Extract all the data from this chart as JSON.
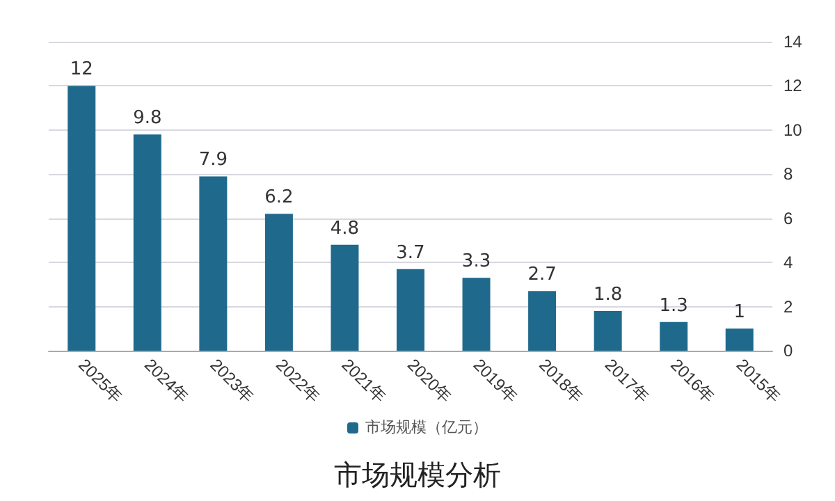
{
  "chart_data": {
    "type": "bar",
    "title": "市场规模分析",
    "categories": [
      "2025年",
      "2024年",
      "2023年",
      "2022年",
      "2021年",
      "2020年",
      "2019年",
      "2018年",
      "2017年",
      "2016年",
      "2015年"
    ],
    "series": [
      {
        "name": "市场规模（亿元）",
        "color": "#1f6a8c",
        "values": [
          12,
          9.8,
          7.9,
          6.2,
          4.8,
          3.7,
          3.3,
          2.7,
          1.8,
          1.3,
          1
        ]
      }
    ],
    "ylim": [
      0,
      14
    ],
    "yticks": [
      0,
      2,
      4,
      6,
      8,
      10,
      12,
      14
    ],
    "grid": "y",
    "legend": "bottom",
    "data_labels": true
  }
}
